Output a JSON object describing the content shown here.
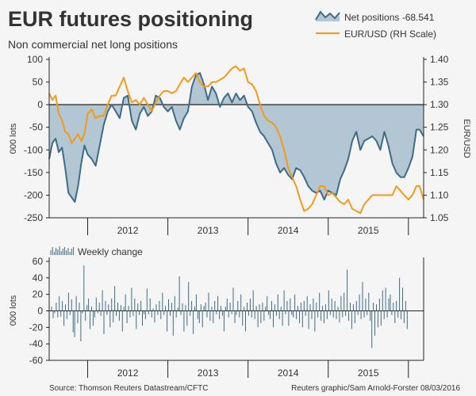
{
  "title": "EUR futures positioning",
  "subtitle": "Non commercial net long positions",
  "source": "Source: Thomson Reuters Datastream/CFTC",
  "credit": "Reuters graphic/Sam Arnold-Forster 08/03/2016",
  "colors": {
    "background": "#f5f5f5",
    "area_fill": "#b3c6d3",
    "net_line": "#3e6b86",
    "eur_line": "#f39a1a",
    "bar": "#3e6b86",
    "axis": "#222222",
    "text": "#333333"
  },
  "chart_data": [
    {
      "type": "area",
      "title": "EUR futures positioning",
      "ylabel": "000 lots",
      "ylabel_right": "EUR/USD",
      "ylim": [
        -250,
        100
      ],
      "ylim_right": [
        1.05,
        1.4
      ],
      "xlim": [
        2011.52,
        2016.19
      ],
      "yticks": [
        100,
        50,
        0,
        -50,
        -100,
        -150,
        -200,
        -250
      ],
      "yticks_right": [
        "1.40",
        "1.35",
        "1.30",
        "1.25",
        "1.20",
        "1.15",
        "1.10",
        "1.05"
      ],
      "xticks": [
        {
          "label": "2012",
          "x": 2012.0
        },
        {
          "label": "2013",
          "x": 2013.0
        },
        {
          "label": "2014",
          "x": 2014.0
        },
        {
          "label": "2015",
          "x": 2015.0
        }
      ],
      "legend": [
        {
          "label": "Net positions -68.541",
          "swatch": "area"
        },
        {
          "label": "EUR/USD (RH Scale)",
          "swatch": "line"
        }
      ],
      "series": [
        {
          "name": "Net positions",
          "axis": "left",
          "style": "area",
          "x": [
            2011.52,
            2011.56,
            2011.6,
            2011.64,
            2011.68,
            2011.72,
            2011.76,
            2011.8,
            2011.84,
            2011.88,
            2011.92,
            2011.96,
            2012.0,
            2012.05,
            2012.1,
            2012.15,
            2012.2,
            2012.25,
            2012.3,
            2012.35,
            2012.4,
            2012.45,
            2012.5,
            2012.55,
            2012.6,
            2012.65,
            2012.7,
            2012.75,
            2012.8,
            2012.85,
            2012.9,
            2012.95,
            2013.0,
            2013.05,
            2013.1,
            2013.15,
            2013.2,
            2013.25,
            2013.3,
            2013.35,
            2013.4,
            2013.45,
            2013.5,
            2013.55,
            2013.6,
            2013.65,
            2013.7,
            2013.75,
            2013.8,
            2013.85,
            2013.9,
            2013.95,
            2014.0,
            2014.05,
            2014.1,
            2014.15,
            2014.2,
            2014.25,
            2014.3,
            2014.35,
            2014.4,
            2014.45,
            2014.5,
            2014.55,
            2014.6,
            2014.65,
            2014.7,
            2014.75,
            2014.8,
            2014.85,
            2014.9,
            2014.95,
            2015.0,
            2015.05,
            2015.1,
            2015.15,
            2015.2,
            2015.25,
            2015.3,
            2015.35,
            2015.4,
            2015.45,
            2015.5,
            2015.55,
            2015.6,
            2015.65,
            2015.7,
            2015.75,
            2015.8,
            2015.85,
            2015.9,
            2015.95,
            2016.0,
            2016.05,
            2016.1,
            2016.14,
            2016.19
          ],
          "values": [
            -120,
            -85,
            -75,
            -105,
            -95,
            -140,
            -195,
            -205,
            -215,
            -180,
            -130,
            -90,
            -110,
            -120,
            -135,
            -90,
            -45,
            -15,
            0,
            -15,
            -30,
            15,
            20,
            -35,
            -55,
            -20,
            -5,
            -25,
            -15,
            20,
            15,
            -5,
            -15,
            -5,
            -35,
            -55,
            -30,
            -15,
            40,
            65,
            70,
            45,
            10,
            40,
            25,
            -5,
            15,
            25,
            5,
            25,
            10,
            20,
            -5,
            -15,
            -40,
            -60,
            -70,
            -85,
            -100,
            -130,
            -150,
            -140,
            -155,
            -165,
            -140,
            -145,
            -160,
            -180,
            -190,
            -195,
            -190,
            -210,
            -190,
            -195,
            -200,
            -165,
            -145,
            -120,
            -80,
            -60,
            -100,
            -80,
            -75,
            -70,
            -80,
            -100,
            -60,
            -90,
            -130,
            -150,
            -160,
            -160,
            -140,
            -115,
            -55,
            -55,
            -70
          ]
        },
        {
          "name": "EUR/USD (RH Scale)",
          "axis": "right",
          "style": "line",
          "x": [
            2011.52,
            2011.56,
            2011.6,
            2011.64,
            2011.68,
            2011.72,
            2011.76,
            2011.8,
            2011.84,
            2011.88,
            2011.92,
            2011.96,
            2012.0,
            2012.05,
            2012.1,
            2012.15,
            2012.2,
            2012.25,
            2012.3,
            2012.35,
            2012.4,
            2012.45,
            2012.5,
            2012.55,
            2012.6,
            2012.65,
            2012.7,
            2012.75,
            2012.8,
            2012.85,
            2012.9,
            2012.95,
            2013.0,
            2013.05,
            2013.1,
            2013.15,
            2013.2,
            2013.25,
            2013.3,
            2013.35,
            2013.4,
            2013.45,
            2013.5,
            2013.55,
            2013.6,
            2013.65,
            2013.7,
            2013.75,
            2013.8,
            2013.85,
            2013.9,
            2013.95,
            2014.0,
            2014.05,
            2014.1,
            2014.15,
            2014.2,
            2014.25,
            2014.3,
            2014.35,
            2014.4,
            2014.45,
            2014.5,
            2014.55,
            2014.6,
            2014.65,
            2014.7,
            2014.75,
            2014.8,
            2014.85,
            2014.9,
            2014.95,
            2015.0,
            2015.05,
            2015.1,
            2015.15,
            2015.2,
            2015.25,
            2015.3,
            2015.35,
            2015.4,
            2015.45,
            2015.5,
            2015.55,
            2015.6,
            2015.65,
            2015.7,
            2015.75,
            2015.8,
            2015.85,
            2015.9,
            2015.95,
            2016.0,
            2016.05,
            2016.1,
            2016.14,
            2016.19
          ],
          "values": [
            1.325,
            1.31,
            1.32,
            1.28,
            1.265,
            1.24,
            1.235,
            1.215,
            1.225,
            1.235,
            1.22,
            1.235,
            1.28,
            1.29,
            1.27,
            1.275,
            1.275,
            1.3,
            1.32,
            1.32,
            1.34,
            1.36,
            1.33,
            1.305,
            1.31,
            1.3,
            1.315,
            1.3,
            1.285,
            1.305,
            1.32,
            1.33,
            1.33,
            1.325,
            1.33,
            1.345,
            1.36,
            1.35,
            1.36,
            1.37,
            1.35,
            1.34,
            1.34,
            1.35,
            1.35,
            1.355,
            1.36,
            1.37,
            1.38,
            1.385,
            1.375,
            1.38,
            1.35,
            1.345,
            1.33,
            1.3,
            1.275,
            1.265,
            1.26,
            1.25,
            1.23,
            1.2,
            1.16,
            1.14,
            1.12,
            1.09,
            1.065,
            1.07,
            1.08,
            1.1,
            1.12,
            1.12,
            1.1,
            1.105,
            1.095,
            1.085,
            1.08,
            1.09,
            1.07,
            1.065,
            1.06,
            1.08,
            1.09,
            1.1,
            1.1,
            1.1,
            1.1,
            1.1,
            1.1,
            1.12,
            1.11,
            1.1,
            1.09,
            1.1,
            1.12,
            1.12,
            1.09
          ]
        }
      ]
    },
    {
      "type": "bar",
      "title": "Weekly change",
      "ylabel": "000 lots",
      "ylim": [
        -60,
        60
      ],
      "xlim": [
        2011.52,
        2016.19
      ],
      "yticks": [
        60,
        40,
        20,
        0,
        -20,
        -40,
        -60
      ],
      "xticks": [
        {
          "label": "2012",
          "x": 2012.0
        },
        {
          "label": "2013",
          "x": 2013.0
        },
        {
          "label": "2014",
          "x": 2014.0
        },
        {
          "label": "2015",
          "x": 2015.0
        }
      ],
      "legend": [
        {
          "label": "Weekly change",
          "swatch": "bars"
        }
      ],
      "x_start": 2011.55,
      "x_step": 0.0192,
      "values": [
        5,
        -9,
        -3,
        10,
        -8,
        18,
        -7,
        12,
        -18,
        8,
        -10,
        22,
        -5,
        14,
        -26,
        -32,
        18,
        -15,
        10,
        -37,
        -3,
        55,
        -12,
        7,
        15,
        -22,
        5,
        -18,
        -8,
        16,
        -3,
        10,
        -6,
        25,
        -28,
        12,
        -5,
        8,
        -20,
        15,
        -14,
        30,
        -6,
        10,
        -12,
        7,
        -25,
        5,
        20,
        -15,
        6,
        -8,
        28,
        -6,
        15,
        -22,
        9,
        -5,
        12,
        -18,
        -4,
        -10,
        27,
        -4,
        15,
        -8,
        3,
        -14,
        8,
        -5,
        12,
        -10,
        22,
        -5,
        6,
        -25,
        14,
        -6,
        10,
        -30,
        18,
        -8,
        4,
        42,
        -5,
        9,
        -25,
        7,
        -18,
        35,
        -6,
        12,
        -28,
        5,
        20,
        -10,
        -15,
        8,
        -20,
        6,
        10,
        -8,
        22,
        -12,
        5,
        -15,
        12,
        -4,
        18,
        -10,
        6,
        -6,
        -25,
        5,
        15,
        -8,
        10,
        -4,
        28,
        -15,
        -5,
        12,
        -8,
        20,
        -18,
        5,
        -25,
        10,
        -6,
        15,
        -8,
        25,
        -10,
        6,
        -20,
        8,
        -15,
        10,
        -12,
        5,
        18,
        -5,
        -10,
        12,
        -20,
        8,
        -6,
        20,
        -10,
        5,
        -18,
        25,
        -4,
        12,
        -18,
        15,
        -5,
        -8,
        20,
        -10,
        6,
        -15,
        10,
        -20,
        12,
        -6,
        18,
        -22,
        8,
        -10,
        15,
        -25,
        10,
        -8,
        22,
        -12,
        6,
        -15,
        8,
        -10,
        25,
        -5,
        15,
        -8,
        12,
        -10,
        5,
        -14,
        18,
        -8,
        22,
        -6,
        50,
        -12,
        10,
        -22,
        8,
        -15,
        12,
        -5,
        20,
        -10,
        35,
        -8,
        15,
        -5,
        22,
        -12,
        -45,
        10,
        -30,
        8,
        -20,
        15,
        -18,
        25,
        -10,
        28,
        -8,
        15,
        20,
        -5,
        10,
        -15,
        12,
        -8,
        40,
        -10,
        28,
        -15,
        12,
        -22
      ]
    }
  ]
}
